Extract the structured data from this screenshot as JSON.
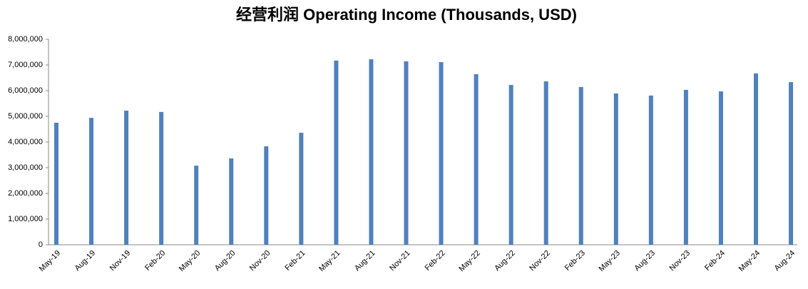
{
  "chart_data": {
    "type": "bar",
    "title": "经营利润 Operating Income (Thousands, USD)",
    "categories": [
      "May-19",
      "Aug-19",
      "Nov-19",
      "Feb-20",
      "May-20",
      "Aug-20",
      "Nov-20",
      "Feb-21",
      "May-21",
      "Aug-21",
      "Nov-21",
      "Feb-22",
      "May-22",
      "Aug-22",
      "Nov-22",
      "Feb-23",
      "May-23",
      "Aug-23",
      "Nov-23",
      "Feb-24",
      "May-24",
      "Aug-24"
    ],
    "values": [
      4750000,
      4940000,
      5220000,
      5170000,
      3080000,
      3360000,
      3830000,
      4360000,
      7170000,
      7220000,
      7140000,
      7110000,
      6640000,
      6220000,
      6360000,
      6140000,
      5890000,
      5810000,
      6030000,
      5970000,
      6670000,
      6330000
    ],
    "color": "#4f81bd",
    "ylim": [
      0,
      8000000
    ],
    "yticks": [
      0,
      {
        "value": 1000000,
        "label": "1,000,000"
      },
      {
        "value": 2000000,
        "label": "2,000,000"
      },
      {
        "value": 3000000,
        "label": "3,000,000"
      },
      {
        "value": 4000000,
        "label": "4,000,000"
      },
      {
        "value": 5000000,
        "label": "5,000,000"
      },
      {
        "value": 6000000,
        "label": "6,000,000"
      },
      {
        "value": 7000000,
        "label": "7,000,000"
      },
      {
        "value": 8000000,
        "label": "8,000,000"
      }
    ],
    "grid": false
  }
}
